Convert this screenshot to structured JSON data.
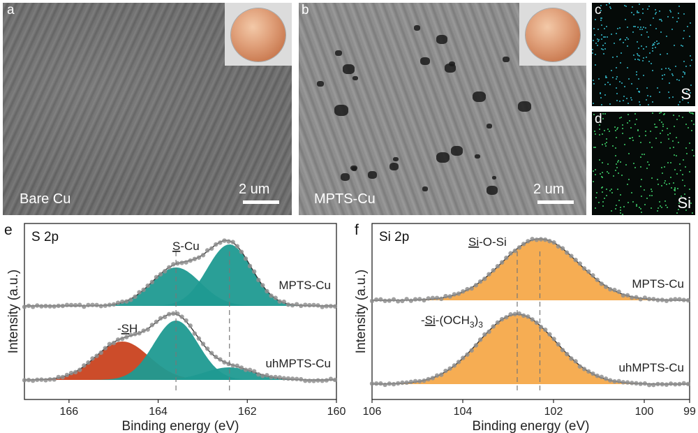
{
  "panels": {
    "a": {
      "letter": "a",
      "caption": "Bare Cu",
      "scale": "2 um"
    },
    "b": {
      "letter": "b",
      "caption": "MPTS-Cu",
      "scale": "2 um"
    },
    "c": {
      "letter": "c",
      "element": "S",
      "dot_color": "#33b8c8"
    },
    "d": {
      "letter": "d",
      "element": "Si",
      "dot_color": "#3ed06a"
    },
    "e": {
      "letter": "e",
      "title": "S 2p"
    },
    "f": {
      "letter": "f",
      "title": "Si 2p"
    }
  },
  "colors": {
    "teal": "#1f9a91",
    "red": "#c9421f",
    "orange": "#f5a94a",
    "points": "#8f8f8f"
  },
  "chart_data": [
    {
      "type": "area",
      "id": "S2p",
      "title": "S 2p",
      "xlabel": "Binding energy (eV)",
      "ylabel": "Intensity (a.u.)",
      "xlim": [
        167,
        160
      ],
      "xticks": [
        166,
        164,
        162,
        160
      ],
      "reference_lines": [
        163.6,
        162.4
      ],
      "series": [
        {
          "name": "MPTS-Cu",
          "baseline": 0,
          "peaks": [
            {
              "label": "S-Cu",
              "center": 163.6,
              "height": 0.5,
              "width": 0.55,
              "color": "teal"
            },
            {
              "center": 162.4,
              "height": 0.8,
              "width": 0.5,
              "color": "teal"
            }
          ]
        },
        {
          "name": "uhMPTS-Cu",
          "baseline": 0,
          "peaks": [
            {
              "label": "-SH",
              "center": 164.8,
              "height": 0.55,
              "width": 0.6,
              "color": "red"
            },
            {
              "center": 163.6,
              "height": 0.85,
              "width": 0.5,
              "color": "teal"
            },
            {
              "center": 162.4,
              "height": 0.18,
              "width": 0.55,
              "color": "teal"
            }
          ]
        }
      ]
    },
    {
      "type": "area",
      "id": "Si2p",
      "title": "Si 2p",
      "xlabel": "Binding energy (eV)",
      "ylabel": "Intensity (a.u.)",
      "xlim": [
        106,
        99
      ],
      "xticks": [
        106,
        104,
        102,
        100,
        99
      ],
      "reference_lines": [
        102.3,
        102.8
      ],
      "series": [
        {
          "name": "MPTS-Cu",
          "peaks": [
            {
              "label": "Si-O-Si",
              "center": 102.3,
              "height": 1.0,
              "width": 0.85,
              "color": "orange"
            }
          ]
        },
        {
          "name": "uhMPTS-Cu",
          "peaks": [
            {
              "label": "-Si-(OCH3)3",
              "center": 102.8,
              "height": 1.0,
              "width": 0.85,
              "color": "orange"
            }
          ]
        }
      ]
    }
  ],
  "labels": {
    "sh_prefix": "-",
    "sh_u": "S",
    "sh_rest": "H",
    "scu_u": "S",
    "scu_rest": "-Cu",
    "sios_u": "Si",
    "sios_rest": "-O-Si",
    "sioch_pre": "-",
    "sioch_u": "Si",
    "sioch_mid": "-(OCH",
    "sioch_sub3a": "3",
    "sioch_close": ")",
    "sioch_sub3b": "3"
  }
}
